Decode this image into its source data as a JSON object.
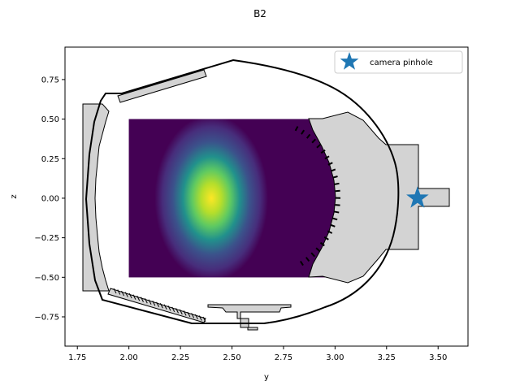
{
  "chart_data": {
    "type": "scatter",
    "title": "B2",
    "xlabel": "y",
    "ylabel": "z",
    "xlim": [
      1.69,
      3.645
    ],
    "ylim": [
      -0.935,
      0.955
    ],
    "xticks": [
      1.75,
      2.0,
      2.25,
      2.5,
      2.75,
      3.0,
      3.25,
      3.5
    ],
    "xtick_labels": [
      "1.75",
      "2.00",
      "2.25",
      "2.50",
      "2.75",
      "3.00",
      "3.25",
      "3.50"
    ],
    "yticks": [
      -0.75,
      -0.5,
      -0.25,
      0.0,
      0.25,
      0.5,
      0.75
    ],
    "ytick_labels": [
      "−0.75",
      "−0.50",
      "−0.25",
      "0.00",
      "0.25",
      "0.50",
      "0.75"
    ],
    "grid": false,
    "legend_position": "upper right",
    "series": [
      {
        "name": "camera pinhole",
        "marker": "star",
        "color": "#1f77b4",
        "points": [
          [
            3.4,
            0.0
          ]
        ]
      }
    ],
    "emission_image": {
      "colormap": "viridis",
      "extent_x": [
        2.0,
        3.0
      ],
      "extent_z": [
        -0.5,
        0.5
      ],
      "peak": [
        2.4,
        0.0
      ]
    }
  },
  "colors": {
    "wall_line": "#000000",
    "component_fill": "#d3d3d3",
    "marker": "#1f77b4"
  }
}
